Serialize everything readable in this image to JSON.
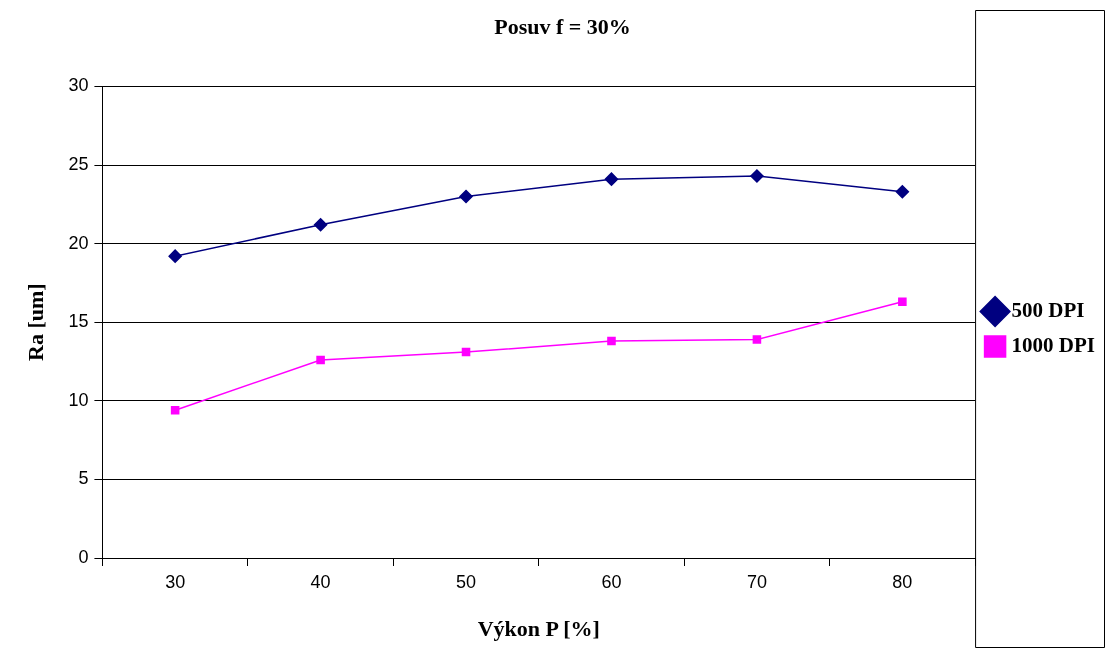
{
  "chart_data": {
    "type": "line",
    "title": "Posuv f = 30%",
    "xlabel": "Výkon P [%]",
    "ylabel": "Ra [um]",
    "categories": [
      "30",
      "40",
      "50",
      "60",
      "70",
      "80"
    ],
    "series": [
      {
        "name": "500 DPI",
        "color": "#000080",
        "marker": "diamond",
        "values": [
          19.2,
          21.2,
          23.0,
          24.1,
          24.3,
          23.3
        ]
      },
      {
        "name": "1000 DPI",
        "color": "#ff00ff",
        "marker": "square",
        "values": [
          9.4,
          12.6,
          13.1,
          13.8,
          13.9,
          16.3
        ]
      }
    ],
    "ylim": [
      0,
      30
    ],
    "yticks": [
      0,
      5,
      10,
      15,
      20,
      25,
      30
    ],
    "grid": "y",
    "legend": "right",
    "line_style": "solid"
  }
}
